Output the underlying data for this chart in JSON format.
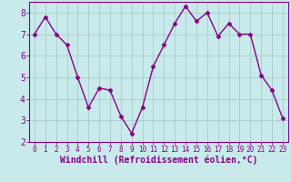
{
  "x": [
    0,
    1,
    2,
    3,
    4,
    5,
    6,
    7,
    8,
    9,
    10,
    11,
    12,
    13,
    14,
    15,
    16,
    17,
    18,
    19,
    20,
    21,
    22,
    23
  ],
  "y": [
    7.0,
    7.8,
    7.0,
    6.5,
    5.0,
    3.6,
    4.5,
    4.4,
    3.2,
    2.4,
    3.6,
    5.5,
    6.5,
    7.5,
    8.3,
    7.6,
    8.0,
    6.9,
    7.5,
    7.0,
    7.0,
    5.1,
    4.4,
    3.1
  ],
  "line_color": "#880088",
  "marker": "D",
  "marker_size": 2.5,
  "background_color": "#c8eaea",
  "grid_color": "#aacccc",
  "xlabel": "Windchill (Refroidissement éolien,°C)",
  "ylim": [
    2,
    8.5
  ],
  "xlim": [
    -0.5,
    23.5
  ],
  "yticks": [
    2,
    3,
    4,
    5,
    6,
    7,
    8
  ],
  "xticks": [
    0,
    1,
    2,
    3,
    4,
    5,
    6,
    7,
    8,
    9,
    10,
    11,
    12,
    13,
    14,
    15,
    16,
    17,
    18,
    19,
    20,
    21,
    22,
    23
  ],
  "tick_label_color": "#880088",
  "linewidth": 1.0,
  "spine_color": "#880088",
  "tick_fontsize": 5.5,
  "xlabel_fontsize": 7.0,
  "ytick_fontsize": 7.0
}
